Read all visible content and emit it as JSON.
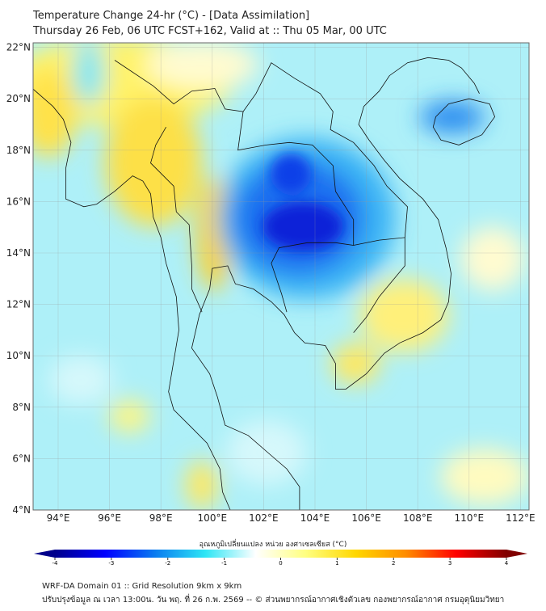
{
  "title": {
    "line1": "Temperature Change 24-hr (°C) - [Data Assimilation]",
    "line2": "Thursday 26 Feb, 06 UTC FCST+162, Valid at :: Thu 05 Mar, 00 UTC"
  },
  "map": {
    "lat_labels": [
      "4°N",
      "6°N",
      "8°N",
      "10°N",
      "12°N",
      "14°N",
      "16°N",
      "18°N",
      "20°N",
      "22°N"
    ],
    "lon_labels": [
      "94°E",
      "96°E",
      "98°E",
      "100°E",
      "102°E",
      "104°E",
      "106°E",
      "108°E",
      "110°E",
      "112°E"
    ]
  },
  "colorbar": {
    "title": "อุณหภูมิเปลี่ยนแปลง หน่วย องศาเซลเซียส (°C)",
    "ticks": [
      "-4",
      "-3",
      "-2",
      "-1",
      "0",
      "1",
      "2",
      "3",
      "4"
    ],
    "colors": [
      "#00008b",
      "#0000ff",
      "#0a7cf0",
      "#2ee6f5",
      "#ffffff",
      "#ffff80",
      "#ffd700",
      "#ff8c00",
      "#ff0000",
      "#800000"
    ]
  },
  "footer": {
    "line1": "WRF-DA Domain 01 :: Grid Resolution 9km x 9km",
    "line2": "ปรับปรุงข้อมูล ณ เวลา 13:00น. วัน พฤ. ที่ 26 ก.พ. 2569 -- © ส่วนพยากรณ์อากาศเชิงตัวเลข กองพยากรณ์อากาศ กรมอุตุนิยมวิทยา"
  }
}
